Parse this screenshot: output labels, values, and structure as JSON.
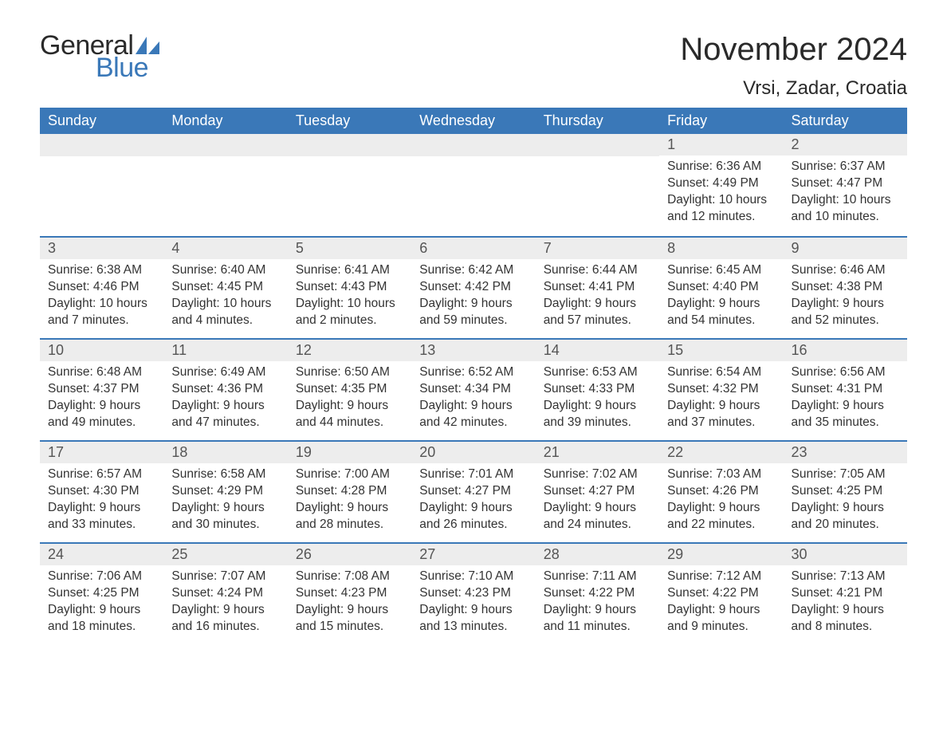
{
  "brand": {
    "text1": "General",
    "text2": "Blue",
    "sail_color": "#3a78b8"
  },
  "title": "November 2024",
  "location": "Vrsi, Zadar, Croatia",
  "colors": {
    "header_bg": "#3a78b8",
    "header_text": "#ffffff",
    "row_divider": "#3a78b8",
    "daynum_bg": "#ededed",
    "body_text": "#333333",
    "page_bg": "#ffffff"
  },
  "layout": {
    "type": "calendar-month",
    "columns": 7,
    "rows": 5,
    "title_fontsize": 40,
    "location_fontsize": 24,
    "weekday_fontsize": 18,
    "body_fontsize": 15.5
  },
  "weekdays": [
    "Sunday",
    "Monday",
    "Tuesday",
    "Wednesday",
    "Thursday",
    "Friday",
    "Saturday"
  ],
  "weeks": [
    [
      null,
      null,
      null,
      null,
      null,
      {
        "n": "1",
        "sr": "Sunrise: 6:36 AM",
        "ss": "Sunset: 4:49 PM",
        "dl": "Daylight: 10 hours and 12 minutes."
      },
      {
        "n": "2",
        "sr": "Sunrise: 6:37 AM",
        "ss": "Sunset: 4:47 PM",
        "dl": "Daylight: 10 hours and 10 minutes."
      }
    ],
    [
      {
        "n": "3",
        "sr": "Sunrise: 6:38 AM",
        "ss": "Sunset: 4:46 PM",
        "dl": "Daylight: 10 hours and 7 minutes."
      },
      {
        "n": "4",
        "sr": "Sunrise: 6:40 AM",
        "ss": "Sunset: 4:45 PM",
        "dl": "Daylight: 10 hours and 4 minutes."
      },
      {
        "n": "5",
        "sr": "Sunrise: 6:41 AM",
        "ss": "Sunset: 4:43 PM",
        "dl": "Daylight: 10 hours and 2 minutes."
      },
      {
        "n": "6",
        "sr": "Sunrise: 6:42 AM",
        "ss": "Sunset: 4:42 PM",
        "dl": "Daylight: 9 hours and 59 minutes."
      },
      {
        "n": "7",
        "sr": "Sunrise: 6:44 AM",
        "ss": "Sunset: 4:41 PM",
        "dl": "Daylight: 9 hours and 57 minutes."
      },
      {
        "n": "8",
        "sr": "Sunrise: 6:45 AM",
        "ss": "Sunset: 4:40 PM",
        "dl": "Daylight: 9 hours and 54 minutes."
      },
      {
        "n": "9",
        "sr": "Sunrise: 6:46 AM",
        "ss": "Sunset: 4:38 PM",
        "dl": "Daylight: 9 hours and 52 minutes."
      }
    ],
    [
      {
        "n": "10",
        "sr": "Sunrise: 6:48 AM",
        "ss": "Sunset: 4:37 PM",
        "dl": "Daylight: 9 hours and 49 minutes."
      },
      {
        "n": "11",
        "sr": "Sunrise: 6:49 AM",
        "ss": "Sunset: 4:36 PM",
        "dl": "Daylight: 9 hours and 47 minutes."
      },
      {
        "n": "12",
        "sr": "Sunrise: 6:50 AM",
        "ss": "Sunset: 4:35 PM",
        "dl": "Daylight: 9 hours and 44 minutes."
      },
      {
        "n": "13",
        "sr": "Sunrise: 6:52 AM",
        "ss": "Sunset: 4:34 PM",
        "dl": "Daylight: 9 hours and 42 minutes."
      },
      {
        "n": "14",
        "sr": "Sunrise: 6:53 AM",
        "ss": "Sunset: 4:33 PM",
        "dl": "Daylight: 9 hours and 39 minutes."
      },
      {
        "n": "15",
        "sr": "Sunrise: 6:54 AM",
        "ss": "Sunset: 4:32 PM",
        "dl": "Daylight: 9 hours and 37 minutes."
      },
      {
        "n": "16",
        "sr": "Sunrise: 6:56 AM",
        "ss": "Sunset: 4:31 PM",
        "dl": "Daylight: 9 hours and 35 minutes."
      }
    ],
    [
      {
        "n": "17",
        "sr": "Sunrise: 6:57 AM",
        "ss": "Sunset: 4:30 PM",
        "dl": "Daylight: 9 hours and 33 minutes."
      },
      {
        "n": "18",
        "sr": "Sunrise: 6:58 AM",
        "ss": "Sunset: 4:29 PM",
        "dl": "Daylight: 9 hours and 30 minutes."
      },
      {
        "n": "19",
        "sr": "Sunrise: 7:00 AM",
        "ss": "Sunset: 4:28 PM",
        "dl": "Daylight: 9 hours and 28 minutes."
      },
      {
        "n": "20",
        "sr": "Sunrise: 7:01 AM",
        "ss": "Sunset: 4:27 PM",
        "dl": "Daylight: 9 hours and 26 minutes."
      },
      {
        "n": "21",
        "sr": "Sunrise: 7:02 AM",
        "ss": "Sunset: 4:27 PM",
        "dl": "Daylight: 9 hours and 24 minutes."
      },
      {
        "n": "22",
        "sr": "Sunrise: 7:03 AM",
        "ss": "Sunset: 4:26 PM",
        "dl": "Daylight: 9 hours and 22 minutes."
      },
      {
        "n": "23",
        "sr": "Sunrise: 7:05 AM",
        "ss": "Sunset: 4:25 PM",
        "dl": "Daylight: 9 hours and 20 minutes."
      }
    ],
    [
      {
        "n": "24",
        "sr": "Sunrise: 7:06 AM",
        "ss": "Sunset: 4:25 PM",
        "dl": "Daylight: 9 hours and 18 minutes."
      },
      {
        "n": "25",
        "sr": "Sunrise: 7:07 AM",
        "ss": "Sunset: 4:24 PM",
        "dl": "Daylight: 9 hours and 16 minutes."
      },
      {
        "n": "26",
        "sr": "Sunrise: 7:08 AM",
        "ss": "Sunset: 4:23 PM",
        "dl": "Daylight: 9 hours and 15 minutes."
      },
      {
        "n": "27",
        "sr": "Sunrise: 7:10 AM",
        "ss": "Sunset: 4:23 PM",
        "dl": "Daylight: 9 hours and 13 minutes."
      },
      {
        "n": "28",
        "sr": "Sunrise: 7:11 AM",
        "ss": "Sunset: 4:22 PM",
        "dl": "Daylight: 9 hours and 11 minutes."
      },
      {
        "n": "29",
        "sr": "Sunrise: 7:12 AM",
        "ss": "Sunset: 4:22 PM",
        "dl": "Daylight: 9 hours and 9 minutes."
      },
      {
        "n": "30",
        "sr": "Sunrise: 7:13 AM",
        "ss": "Sunset: 4:21 PM",
        "dl": "Daylight: 9 hours and 8 minutes."
      }
    ]
  ]
}
